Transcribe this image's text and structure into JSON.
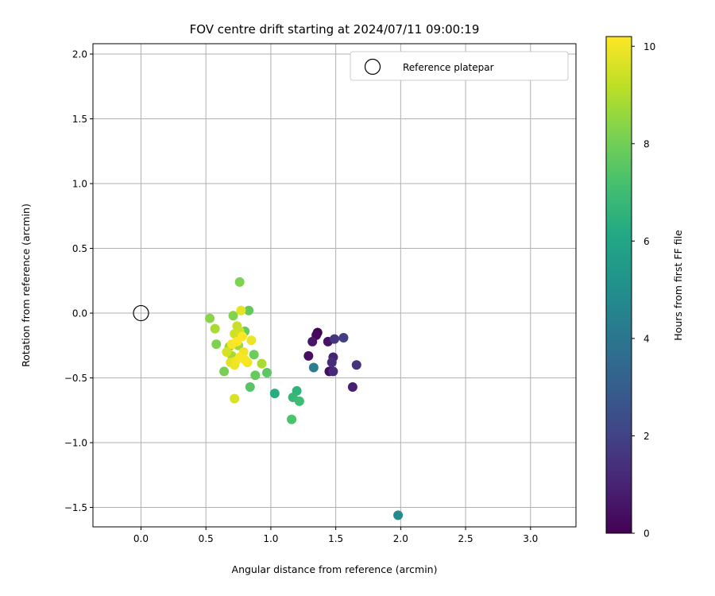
{
  "chart_data": {
    "type": "scatter",
    "title": "FOV centre drift starting at 2024/07/11 09:00:19",
    "xlabel": "Angular distance from reference (arcmin)",
    "ylabel": "Rotation from reference (arcmin)",
    "xlim": [
      -0.37,
      3.35
    ],
    "ylim": [
      -1.65,
      2.08
    ],
    "x_ticks": [
      0.0,
      0.5,
      1.0,
      1.5,
      2.0,
      2.5,
      3.0
    ],
    "x_tick_labels": [
      "0.0",
      "0.5",
      "1.0",
      "1.5",
      "2.0",
      "2.5",
      "3.0"
    ],
    "y_ticks": [
      2.0,
      1.5,
      1.0,
      0.5,
      0.0,
      -0.5,
      -1.0,
      -1.5
    ],
    "y_tick_labels": [
      "2.0",
      "1.5",
      "1.0",
      "0.5",
      "0.0",
      "−0.5",
      "−1.0",
      "−1.5"
    ],
    "grid": true,
    "legend": {
      "placement": "top-right",
      "entries": [
        "Reference platepar"
      ]
    },
    "reference_point": {
      "name": "Reference platepar",
      "x": 0.0,
      "y": 0.0
    },
    "colorbar": {
      "label": "Hours from first FF file",
      "min": 0,
      "max": 10.2,
      "ticks": [
        0,
        2,
        4,
        6,
        8,
        10
      ],
      "tick_labels": [
        "0",
        "2",
        "4",
        "6",
        "8",
        "10"
      ],
      "colormap": "viridis"
    },
    "points": [
      {
        "x": 1.36,
        "y": -0.15,
        "hours": 0.1
      },
      {
        "x": 1.35,
        "y": -0.17,
        "hours": 0.2
      },
      {
        "x": 1.32,
        "y": -0.22,
        "hours": 0.6
      },
      {
        "x": 1.29,
        "y": -0.33,
        "hours": 0.4
      },
      {
        "x": 1.44,
        "y": -0.22,
        "hours": 0.5
      },
      {
        "x": 1.45,
        "y": -0.45,
        "hours": 0.3
      },
      {
        "x": 1.48,
        "y": -0.34,
        "hours": 1.0
      },
      {
        "x": 1.47,
        "y": -0.38,
        "hours": 1.3
      },
      {
        "x": 1.48,
        "y": -0.45,
        "hours": 1.2
      },
      {
        "x": 1.49,
        "y": -0.2,
        "hours": 1.6
      },
      {
        "x": 1.56,
        "y": -0.19,
        "hours": 1.9
      },
      {
        "x": 1.63,
        "y": -0.57,
        "hours": 0.9
      },
      {
        "x": 1.66,
        "y": -0.4,
        "hours": 1.5
      },
      {
        "x": 1.33,
        "y": -0.42,
        "hours": 4.3
      },
      {
        "x": 1.98,
        "y": -1.56,
        "hours": 4.9
      },
      {
        "x": 1.03,
        "y": -0.62,
        "hours": 6.3
      },
      {
        "x": 1.17,
        "y": -0.65,
        "hours": 6.8
      },
      {
        "x": 1.2,
        "y": -0.6,
        "hours": 6.6
      },
      {
        "x": 1.22,
        "y": -0.68,
        "hours": 7.0
      },
      {
        "x": 1.16,
        "y": -0.82,
        "hours": 7.3
      },
      {
        "x": 0.84,
        "y": -0.57,
        "hours": 7.5
      },
      {
        "x": 0.97,
        "y": -0.46,
        "hours": 7.6
      },
      {
        "x": 0.88,
        "y": -0.48,
        "hours": 7.8
      },
      {
        "x": 0.87,
        "y": -0.32,
        "hours": 7.9
      },
      {
        "x": 0.8,
        "y": -0.14,
        "hours": 7.8
      },
      {
        "x": 0.83,
        "y": 0.02,
        "hours": 7.7
      },
      {
        "x": 0.76,
        "y": 0.24,
        "hours": 8.2
      },
      {
        "x": 0.71,
        "y": -0.02,
        "hours": 8.3
      },
      {
        "x": 0.53,
        "y": -0.04,
        "hours": 8.4
      },
      {
        "x": 0.58,
        "y": -0.24,
        "hours": 8.2
      },
      {
        "x": 0.64,
        "y": -0.45,
        "hours": 8.1
      },
      {
        "x": 0.57,
        "y": -0.12,
        "hours": 8.9
      },
      {
        "x": 0.68,
        "y": -0.26,
        "hours": 8.6
      },
      {
        "x": 0.7,
        "y": -0.33,
        "hours": 8.8
      },
      {
        "x": 0.75,
        "y": -0.25,
        "hours": 8.7
      },
      {
        "x": 0.93,
        "y": -0.39,
        "hours": 8.9
      },
      {
        "x": 0.74,
        "y": -0.1,
        "hours": 9.3
      },
      {
        "x": 0.72,
        "y": -0.16,
        "hours": 9.5
      },
      {
        "x": 0.76,
        "y": -0.14,
        "hours": 9.4
      },
      {
        "x": 0.66,
        "y": -0.3,
        "hours": 9.6
      },
      {
        "x": 0.69,
        "y": -0.38,
        "hours": 9.7
      },
      {
        "x": 0.72,
        "y": -0.4,
        "hours": 9.9
      },
      {
        "x": 0.72,
        "y": -0.66,
        "hours": 9.6
      },
      {
        "x": 0.77,
        "y": 0.02,
        "hours": 9.8
      },
      {
        "x": 0.79,
        "y": -0.3,
        "hours": 10.0
      },
      {
        "x": 0.8,
        "y": -0.36,
        "hours": 10.1
      },
      {
        "x": 0.74,
        "y": -0.22,
        "hours": 10.2
      },
      {
        "x": 0.85,
        "y": -0.21,
        "hours": 9.9
      },
      {
        "x": 0.76,
        "y": -0.34,
        "hours": 10.1
      },
      {
        "x": 0.82,
        "y": -0.38,
        "hours": 10.0
      },
      {
        "x": 0.7,
        "y": -0.24,
        "hours": 10.1
      },
      {
        "x": 0.78,
        "y": -0.18,
        "hours": 10.2
      },
      {
        "x": 0.73,
        "y": -0.37,
        "hours": 10.0
      }
    ]
  }
}
